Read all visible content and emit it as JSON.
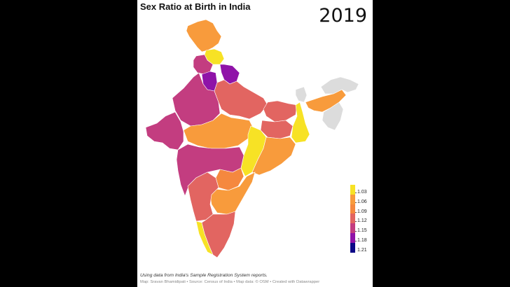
{
  "map": {
    "title": "Sex Ratio at Birth in India",
    "year": "2019",
    "note": "Using data from India's Sample Registration System reports.",
    "credit": "Map: Sravan Bhamidipati • Source: Census of India • Map data: © OSM • Created with Datawrapper"
  },
  "legend": {
    "labels": [
      "1.03",
      "1.06",
      "1.09",
      "1.12",
      "1.15",
      "1.18",
      "1.21"
    ],
    "colors": [
      "#f7e225",
      "#f89b3c",
      "#f5883f",
      "#e26561",
      "#c33d80",
      "#8f13a8",
      "#0d0887"
    ]
  },
  "colors": {
    "background": "#000000",
    "no_data": "#dcdcdc",
    "border": "#ffffff"
  }
}
